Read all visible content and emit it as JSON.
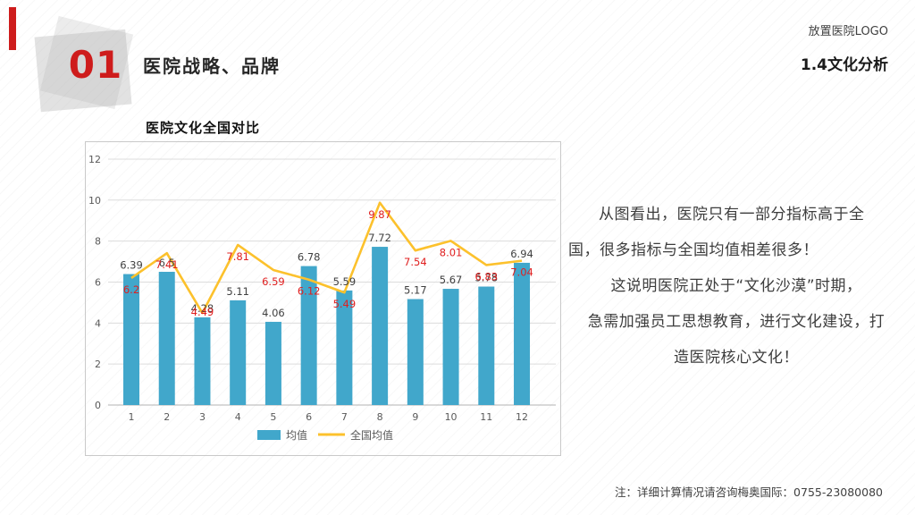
{
  "header": {
    "badge_number": "01",
    "section_title": "医院战略、品牌",
    "logo_placeholder": "放置医院LOGO",
    "page_subtitle": "1.4文化分析"
  },
  "chart_data": {
    "type": "bar",
    "title": "医院文化全国对比",
    "categories": [
      "1",
      "2",
      "3",
      "4",
      "5",
      "6",
      "7",
      "8",
      "9",
      "10",
      "11",
      "12"
    ],
    "series": [
      {
        "name": "均值",
        "type": "bar",
        "values": [
          6.39,
          6.5,
          4.28,
          5.11,
          4.06,
          6.78,
          5.59,
          7.72,
          5.17,
          5.67,
          5.78,
          6.94
        ]
      },
      {
        "name": "全国均值",
        "type": "line",
        "values": [
          6.2,
          7.41,
          4.49,
          7.81,
          6.59,
          6.12,
          5.49,
          9.87,
          7.54,
          8.01,
          6.83,
          7.04
        ]
      }
    ],
    "xlabel": "",
    "ylabel": "",
    "ylim": [
      0,
      12
    ],
    "yticks": [
      0,
      2,
      4,
      6,
      8,
      10,
      12
    ],
    "grid": true,
    "legend_position": "bottom"
  },
  "analysis": {
    "paragraph1_lines": [
      "从图看出，医院只有一部分指标高于全",
      "国，很多指标与全国均值相差很多！"
    ],
    "paragraph2_lines": [
      "这说明医院正处于“文化沙漠”时期，",
      "急需加强员工思想教育，进行文化建设，打",
      "造医院核心文化！"
    ]
  },
  "footer": {
    "note": "注：详细计算情况请咨询梅奥国际：0755-23080080"
  },
  "colors": {
    "bar": "#41a7cb",
    "line": "#fcc12c",
    "bar_label": "#404040",
    "line_label": "#e02020",
    "accent_red": "#ce1c1c",
    "axis_text": "#595959",
    "gridline": "#dcdcdc",
    "baseline": "#b3b3b3"
  }
}
